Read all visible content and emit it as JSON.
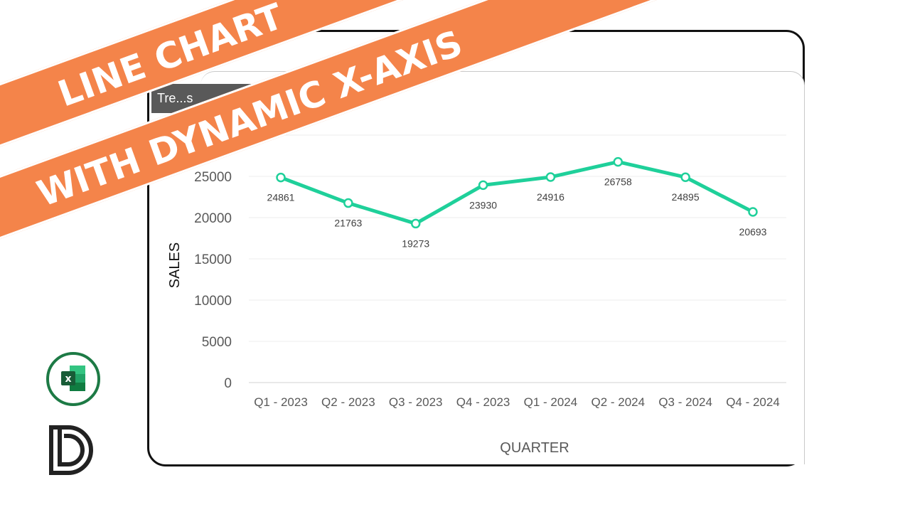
{
  "banner": {
    "line1": "LINE CHART",
    "line2": "WITH DYNAMIC X-AXIS"
  },
  "dropdown": {
    "label": "Tre...s"
  },
  "colors": {
    "line": "#1fd09a",
    "banner": "#f4844a",
    "excel_green": "#1d7a45"
  },
  "icons": {
    "excel": "excel-icon",
    "brand": "d-logo-icon"
  },
  "chart_data": {
    "type": "line",
    "categories": [
      "Q1 - 2023",
      "Q2 - 2023",
      "Q3 - 2023",
      "Q4 - 2023",
      "Q1 - 2024",
      "Q2 - 2024",
      "Q3 - 2024",
      "Q4 - 2024"
    ],
    "series": [
      {
        "values": [
          24861,
          21763,
          19273,
          23930,
          24916,
          26758,
          24895,
          20693
        ]
      }
    ],
    "yticks": [
      0,
      5000,
      10000,
      15000,
      20000,
      25000
    ],
    "ylim": [
      0,
      30000
    ],
    "xlabel": "QUARTER",
    "ylabel": "SALES",
    "grid": true,
    "data_labels": true
  }
}
